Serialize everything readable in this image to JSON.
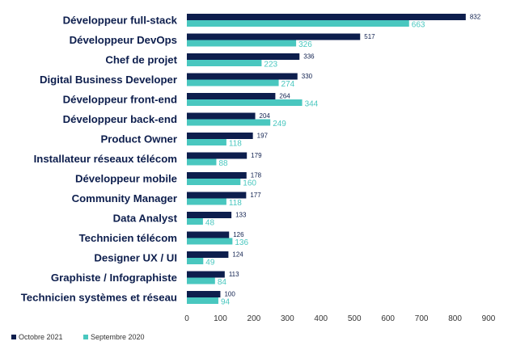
{
  "chart_data": {
    "type": "bar",
    "orientation": "horizontal",
    "categories": [
      "Développeur full-stack",
      "Développeur DevOps",
      "Chef de projet",
      "Digital Business Developer",
      "Développeur front-end",
      "Développeur back-end",
      "Product Owner",
      "Installateur réseaux télécom",
      "Développeur mobile",
      "Community Manager",
      "Data Analyst",
      "Technicien télécom",
      "Designer UX / UI",
      "Graphiste / Infographiste",
      "Technicien systèmes et réseau"
    ],
    "series": [
      {
        "name": "Octobre 2021",
        "color": "#0d1e4d",
        "values": [
          832,
          517,
          336,
          330,
          264,
          204,
          197,
          179,
          178,
          177,
          133,
          126,
          124,
          113,
          100
        ]
      },
      {
        "name": "Septembre 2020",
        "color": "#49c7bf",
        "values": [
          663,
          326,
          223,
          274,
          344,
          249,
          118,
          88,
          160,
          118,
          48,
          136,
          49,
          84,
          94
        ]
      }
    ],
    "xlim": [
      0,
      900
    ],
    "x_ticks": [
      0,
      100,
      200,
      300,
      400,
      500,
      600,
      700,
      800,
      900
    ],
    "grid": false,
    "legend_position": "bottom-left",
    "data_labels": true
  }
}
